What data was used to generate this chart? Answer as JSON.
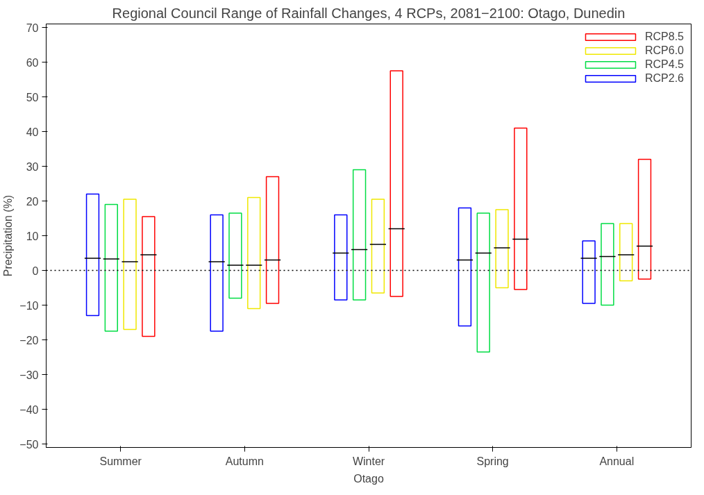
{
  "chart_data": {
    "type": "box",
    "title": "Regional Council Range of Rainfall Changes, 4 RCPs, 2081−2100: Otago, Dunedin",
    "xlabel": "Otago",
    "ylabel": "Precipitation (%)",
    "categories": [
      "Summer",
      "Autumn",
      "Winter",
      "Spring",
      "Annual"
    ],
    "ylim": [
      -51,
      71
    ],
    "yticks": [
      -50,
      -40,
      -30,
      -20,
      -10,
      0,
      10,
      20,
      30,
      40,
      50,
      60,
      70
    ],
    "grid": false,
    "legend": "top right",
    "series": [
      {
        "name": "RCP2.6",
        "color": "#0000ff",
        "boxes": [
          {
            "low": -13,
            "q1": -13,
            "median": 3.5,
            "q3": 22,
            "high": 22
          },
          {
            "low": -17.5,
            "q1": -17.5,
            "median": 2.5,
            "q3": 16,
            "high": 16
          },
          {
            "low": -8.5,
            "q1": -8.5,
            "median": 5,
            "q3": 16,
            "high": 16
          },
          {
            "low": -16,
            "q1": -16,
            "median": 3,
            "q3": 18,
            "high": 18
          },
          {
            "low": -9.5,
            "q1": -9.5,
            "median": 3.5,
            "q3": 8.5,
            "high": 8.5
          }
        ]
      },
      {
        "name": "RCP4.5",
        "color": "#00dd44",
        "boxes": [
          {
            "low": -17.5,
            "q1": -17.5,
            "median": 3.3,
            "q3": 19,
            "high": 19
          },
          {
            "low": -8,
            "q1": -8,
            "median": 1.5,
            "q3": 16.5,
            "high": 16.5
          },
          {
            "low": -8.5,
            "q1": -8.5,
            "median": 6,
            "q3": 29,
            "high": 29
          },
          {
            "low": -23.5,
            "q1": -23.5,
            "median": 5,
            "q3": 16.5,
            "high": 16.5
          },
          {
            "low": -10,
            "q1": -10,
            "median": 4,
            "q3": 13.5,
            "high": 13.5
          }
        ]
      },
      {
        "name": "RCP6.0",
        "color": "#f0e800",
        "boxes": [
          {
            "low": -17,
            "q1": -17,
            "median": 2.5,
            "q3": 20.5,
            "high": 20.5
          },
          {
            "low": -11,
            "q1": -11,
            "median": 1.5,
            "q3": 21,
            "high": 21
          },
          {
            "low": -6.5,
            "q1": -6.5,
            "median": 7.5,
            "q3": 20.5,
            "high": 20.5
          },
          {
            "low": -5,
            "q1": -5,
            "median": 6.5,
            "q3": 17.5,
            "high": 17.5
          },
          {
            "low": -3,
            "q1": -3,
            "median": 4.5,
            "q3": 13.5,
            "high": 13.5
          }
        ]
      },
      {
        "name": "RCP8.5",
        "color": "#ff0000",
        "boxes": [
          {
            "low": -19,
            "q1": -19,
            "median": 4.5,
            "q3": 15.5,
            "high": 15.5
          },
          {
            "low": -9.5,
            "q1": -9.5,
            "median": 3,
            "q3": 27,
            "high": 27
          },
          {
            "low": -7.5,
            "q1": -7.5,
            "median": 12,
            "q3": 57.5,
            "high": 57.5
          },
          {
            "low": -5.5,
            "q1": -5.5,
            "median": 9,
            "q3": 41,
            "high": 41
          },
          {
            "low": -2.5,
            "q1": -2.5,
            "median": 7,
            "q3": 32,
            "high": 32
          }
        ]
      }
    ],
    "ref_lines": [
      {
        "axis": "y",
        "value": 0,
        "color": "#000000",
        "line_style": "dotted"
      }
    ]
  }
}
